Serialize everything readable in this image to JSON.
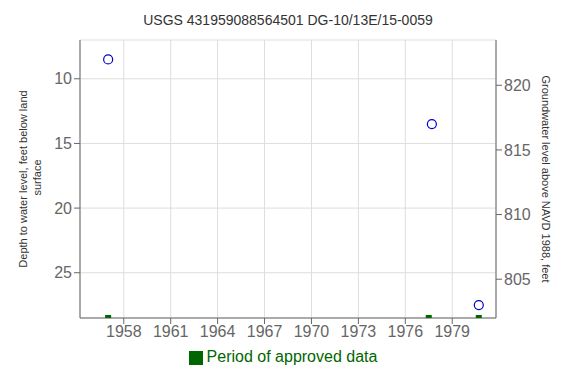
{
  "chart_data": {
    "type": "scatter",
    "title": "USGS 431959088564501 DG-10/13E/15-0059",
    "ylabel": "Depth to water level, feet below land\n surface",
    "y2label": "Groundwater level above NAVD 1988, feet",
    "xlim": [
      1955.2,
      1981.8
    ],
    "xticks": [
      1958,
      1961,
      1964,
      1967,
      1970,
      1973,
      1976,
      1979
    ],
    "ylim": [
      28.5,
      7.0
    ],
    "yticks": [
      10,
      15,
      20,
      25
    ],
    "y2lim": [
      802.0,
      823.5
    ],
    "y2ticks": [
      805,
      810,
      815,
      820
    ],
    "grid": true,
    "legend": "bottom",
    "series": [
      {
        "x": [
          1957.0,
          1977.7,
          1980.7
        ],
        "values": [
          8.5,
          13.5,
          27.5
        ],
        "color": "#0000cc",
        "marker": "circle_open"
      },
      {
        "name": "Period of approved data",
        "x": [
          1957.0,
          1977.5,
          1980.7
        ],
        "values": [
          28.5,
          28.5,
          28.5
        ],
        "color": "#006600",
        "marker": "square"
      }
    ]
  }
}
